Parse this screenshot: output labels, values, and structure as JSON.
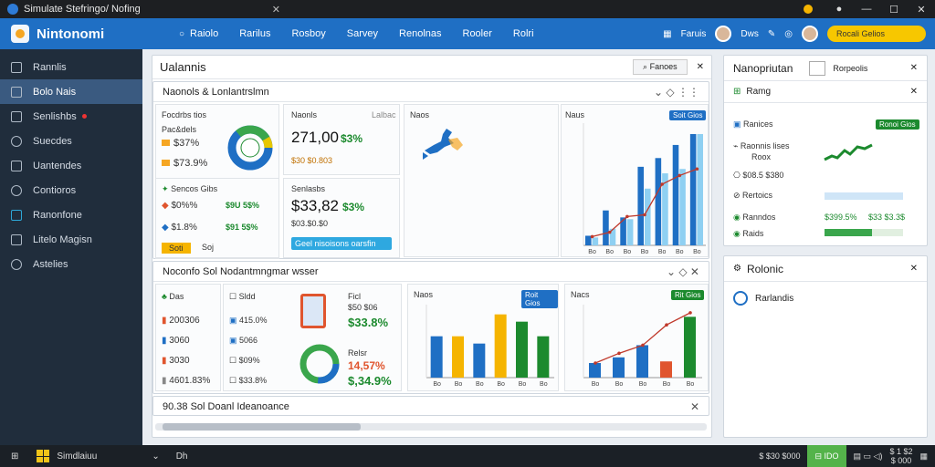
{
  "window": {
    "title": "Simulate Stefringo/ Nofing"
  },
  "topnav": {
    "app_name": "Nintonomi",
    "links": [
      "Raiolo",
      "Rarilus",
      "Rosboy",
      "Sarvey",
      "Renolnas",
      "Rooler",
      "Rolri"
    ],
    "user_label": "Faruis",
    "user_name": "Dws",
    "cta_label": "Rocali Gelios"
  },
  "sidebar": {
    "items": [
      {
        "label": "Rannlis",
        "icon": "menu-icon"
      },
      {
        "label": "Bolo Nais",
        "icon": "folder-icon",
        "active": true
      },
      {
        "label": "Senlishbs",
        "icon": "document-icon",
        "alert": true
      },
      {
        "label": "Suecdes",
        "icon": "clock-icon"
      },
      {
        "label": "Uantendes",
        "icon": "monitor-icon"
      },
      {
        "label": "Contioros",
        "icon": "settings-icon"
      },
      {
        "label": "Ranonfone",
        "icon": "key-icon"
      },
      {
        "label": "Litelo Magisn",
        "icon": "map-icon"
      },
      {
        "label": "Astelies",
        "icon": "globe-icon"
      }
    ]
  },
  "main": {
    "title": "Ualannis",
    "search_label": "Fanoes",
    "section1": {
      "title": "Naonols & Lonlantrslmn",
      "card1": {
        "heading": "Focdrbs tios",
        "sub": "Pac&dels",
        "rows": [
          {
            "value": "$37%",
            "color": "#f5a623"
          },
          {
            "value": "$73.9%",
            "color": "#f5a623"
          }
        ],
        "donut": {
          "blue": 0.62,
          "green": 0.28,
          "yellow": 0.1
        }
      },
      "card2": {
        "heading": "Naonls",
        "tag": "Lalbac",
        "value": "271,00",
        "change": "$3%",
        "sub": "$30 $0.803"
      },
      "card3": {
        "heading": "Sencos Gibs",
        "rows": [
          {
            "value": "$0%%",
            "change": "$9U 5$%",
            "color": "#e0552e"
          },
          {
            "value": "$1.8%",
            "change": "$91 5$%",
            "color": "#1f6fc4"
          }
        ],
        "tag": "Soti",
        "tag_label": "Soj"
      },
      "card4": {
        "heading": "Senlasbs",
        "value": "$33,82",
        "change": "$3%",
        "sub": "$03.$0.$0",
        "button": "Geel nisoisons oarsfin"
      },
      "map": {
        "title": "Naos"
      },
      "chart": {
        "title": "Naus",
        "badge": "Soit Gios",
        "tag": "Roit"
      }
    },
    "section2": {
      "title": "Noconfo Sol Nodantmngmar wsser",
      "list": [
        {
          "label": "Das",
          "color": "#1c8a2e"
        },
        {
          "label": "200306",
          "color": "#e0552e"
        },
        {
          "label": "3060",
          "color": "#1f6fc4"
        },
        {
          "label": "3030",
          "color": "#e0552e"
        },
        {
          "label": "4601.83%",
          "color": "#888888"
        }
      ],
      "list2": [
        "Sldd",
        "415.0%",
        "5066",
        "$09%",
        "$33.8%"
      ],
      "kpi1": {
        "label": "Ficl",
        "sub": "$50 $06",
        "value": "$33.8%"
      },
      "kpi2": {
        "label": "Relsr",
        "value": "14,57%",
        "sub": "$,34.9%"
      },
      "chart_a": {
        "title": "Naos",
        "badge": "Roit Gios"
      },
      "chart_b": {
        "title": "Nacs",
        "badge": "Rit Gios"
      }
    },
    "section3": {
      "title": "90.38 Sol Doanl Ideanoance"
    }
  },
  "right": {
    "panel1": {
      "title": "Nanopriutan",
      "search": "Rorpeolis",
      "sub_title": "Ramg",
      "items": [
        {
          "label": "Ranices",
          "action": "Ronoi Gios"
        },
        {
          "label": "Raonnis lises",
          "sub": "Roox"
        },
        {
          "label": "$08.5 $380"
        },
        {
          "label": "Rertoics",
          "progress": 0.85
        },
        {
          "label": "Ranndos",
          "v1": "$399.5%",
          "v2": "$33 $3.3$"
        },
        {
          "label": "Raids",
          "progress": 0.6
        }
      ]
    },
    "panel2": {
      "title": "Rolonic",
      "item": "Rarlandis"
    }
  },
  "taskbar": {
    "app": "Simdlaiuu",
    "tab": "Dh",
    "clock_a": "$ $30 $000",
    "net": "IDO",
    "time": "$ 1 $2",
    "date": "$ 000"
  },
  "colors": {
    "accent": "#1f6fc4",
    "green": "#1c8a2e",
    "orange": "#e0552e",
    "yellow": "#f5a623"
  },
  "chart_data": [
    {
      "type": "bar",
      "title": "Naus",
      "categories": [
        "Bo",
        "Bo",
        "Bo",
        "Bo",
        "Bo",
        "Bo",
        "Bo"
      ],
      "series": [
        {
          "name": "A",
          "values": [
            22,
            80,
            64,
            180,
            200,
            230,
            255
          ]
        },
        {
          "name": "B",
          "values": [
            18,
            38,
            60,
            130,
            165,
            175,
            255
          ]
        }
      ],
      "line": [
        20,
        30,
        66,
        70,
        140,
        160,
        175
      ],
      "ylim": [
        0,
        280
      ]
    },
    {
      "type": "bar",
      "title": "Naos",
      "categories": [
        "Bo",
        "Bo",
        "Bo",
        "Bo",
        "Bo",
        "Bo"
      ],
      "series": [
        {
          "name": "A",
          "values": [
            85,
            85,
            70,
            130,
            115,
            85
          ]
        }
      ],
      "ylim": [
        0,
        150
      ]
    },
    {
      "type": "bar",
      "title": "Nacs",
      "categories": [
        "Bo",
        "Bo",
        "Bo",
        "Bo",
        "Bo"
      ],
      "series": [
        {
          "name": "A",
          "values": [
            18,
            25,
            40,
            20,
            75
          ]
        }
      ],
      "line": [
        18,
        30,
        40,
        65,
        80
      ],
      "ylim": [
        0,
        90
      ]
    }
  ]
}
